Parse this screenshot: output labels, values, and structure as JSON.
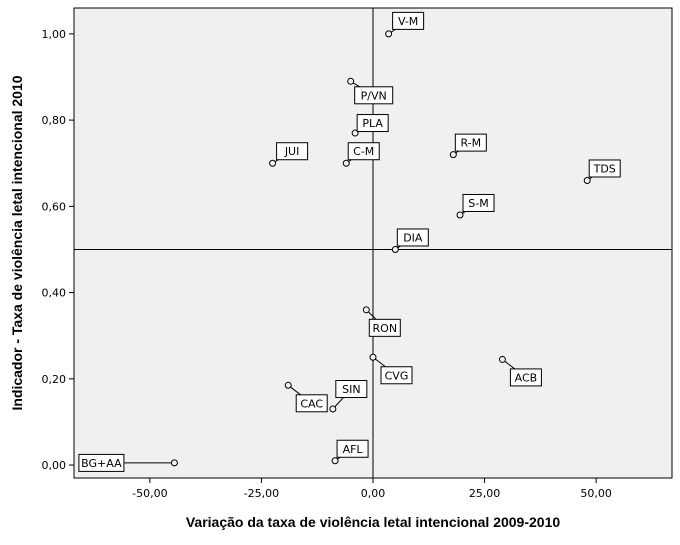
{
  "chart_data": {
    "type": "scatter",
    "title": "",
    "xlabel": "Variação da taxa de violência letal intencional 2009-2010",
    "ylabel": "Indicador - Taxa de violência letal intencional 2010",
    "xlim": [
      -67,
      67
    ],
    "ylim": [
      -0.03,
      1.06
    ],
    "x_ticks": [
      -50,
      -25,
      0,
      25,
      50
    ],
    "x_tick_labels": [
      "-50,00",
      "-25,00",
      "0,00",
      "25,00",
      "50,00"
    ],
    "y_ticks": [
      0,
      0.2,
      0.4,
      0.6,
      0.8,
      1.0
    ],
    "y_tick_labels": [
      "0,00",
      "0,20",
      "0,40",
      "0,60",
      "0,80",
      "1,00"
    ],
    "reference_lines": {
      "x": 0,
      "y": 0.5
    },
    "plot_background": "#f0f0f0",
    "points": [
      {
        "label": "V-M",
        "x": 3.5,
        "y": 1.0
      },
      {
        "label": "P/VN",
        "x": -5.0,
        "y": 0.89
      },
      {
        "label": "PLA",
        "x": -4.0,
        "y": 0.77
      },
      {
        "label": "JUI",
        "x": -22.5,
        "y": 0.7
      },
      {
        "label": "C-M",
        "x": -6.0,
        "y": 0.7
      },
      {
        "label": "R-M",
        "x": 18.0,
        "y": 0.72
      },
      {
        "label": "TDS",
        "x": 48.0,
        "y": 0.66
      },
      {
        "label": "S-M",
        "x": 19.5,
        "y": 0.58
      },
      {
        "label": "DIA",
        "x": 5.0,
        "y": 0.5
      },
      {
        "label": "RON",
        "x": -1.5,
        "y": 0.36
      },
      {
        "label": "CVG",
        "x": 0.0,
        "y": 0.25
      },
      {
        "label": "ACB",
        "x": 29.0,
        "y": 0.245
      },
      {
        "label": "CAC",
        "x": -19.0,
        "y": 0.185
      },
      {
        "label": "SIN",
        "x": -9.0,
        "y": 0.13
      },
      {
        "label": "AFL",
        "x": -8.5,
        "y": 0.01
      },
      {
        "label": "BG+AA",
        "x": -44.5,
        "y": 0.005
      }
    ]
  }
}
